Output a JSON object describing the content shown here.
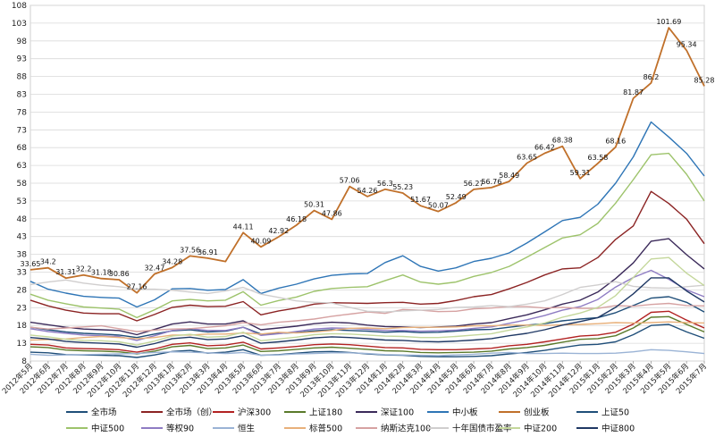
{
  "chart_data": {
    "type": "line",
    "title": "",
    "xlabel": "",
    "ylabel": "",
    "ylim": [
      8,
      108
    ],
    "yticks": [
      8,
      13,
      18,
      23,
      28,
      33,
      38,
      43,
      48,
      53,
      58,
      63,
      68,
      73,
      78,
      83,
      88,
      93,
      98,
      103,
      108
    ],
    "grid": "horizontal",
    "legend_position": "bottom",
    "categories": [
      "2012年5月",
      "2012年6月",
      "2012年7月",
      "2012年8月",
      "2012年9月",
      "2012年10月",
      "2012年11月",
      "2012年12月",
      "2013年1月",
      "2013年2月",
      "2013年3月",
      "2013年4月",
      "2013年5月",
      "2013年6月",
      "2013年7月",
      "2013年8月",
      "2013年9月",
      "2013年10月",
      "2013年11月",
      "2013年12月",
      "2014年1月",
      "2014年2月",
      "2014年3月",
      "2014年4月",
      "2014年5月",
      "2014年6月",
      "2014年7月",
      "2014年8月",
      "2014年9月",
      "2014年10月",
      "2014年11月",
      "2014年12月",
      "2015年1月",
      "2015年2月",
      "2015年3月",
      "2015年4月",
      "2015年5月",
      "2015年6月",
      "2015年7月"
    ],
    "series": [
      {
        "name": "全市场",
        "color": "#1f4e79",
        "values": [
          17.5,
          16.8,
          16.2,
          15.8,
          15.6,
          15.3,
          14.6,
          15.6,
          16.5,
          16.8,
          16.2,
          16.4,
          17.5,
          15.6,
          15.8,
          16.0,
          16.5,
          16.8,
          16.6,
          16.4,
          16.1,
          16.3,
          16.0,
          16.1,
          16.4,
          16.8,
          16.9,
          17.5,
          18.1,
          18.5,
          19.3,
          19.8,
          20.2,
          21.6,
          23.6,
          25.7,
          26.1,
          24.5,
          21.8
        ],
        "labels": []
      },
      {
        "name": "全市场（创）",
        "color": "#8b2323",
        "values": [
          25.1,
          23.5,
          22.3,
          21.5,
          21.3,
          21.3,
          19.3,
          21.1,
          23.1,
          23.7,
          23.3,
          23.4,
          24.7,
          21.0,
          22.1,
          22.9,
          24.0,
          24.4,
          24.3,
          24.2,
          24.4,
          24.5,
          24.0,
          24.2,
          25.0,
          26.1,
          26.7,
          28.3,
          30.1,
          32.2,
          33.9,
          34.2,
          37.1,
          42.2,
          46.0,
          55.7,
          52.3,
          47.9,
          41.0
        ],
        "labels": []
      },
      {
        "name": "沪深300",
        "color": "#b22222",
        "values": [
          12.7,
          12.5,
          11.7,
          11.5,
          11.4,
          11.2,
          10.5,
          11.4,
          12.7,
          13.1,
          12.3,
          12.5,
          13.3,
          11.4,
          11.7,
          12.1,
          12.6,
          12.8,
          12.6,
          12.2,
          11.8,
          11.7,
          11.3,
          11.2,
          11.2,
          11.4,
          11.6,
          12.3,
          12.7,
          13.4,
          14.2,
          15.0,
          15.3,
          16.1,
          18.4,
          21.7,
          22.0,
          19.5,
          17.3
        ],
        "labels": []
      },
      {
        "name": "上证180",
        "color": "#5a7a2a",
        "values": [
          12.0,
          11.8,
          11.1,
          10.9,
          10.8,
          10.6,
          10.0,
          10.8,
          12.0,
          12.4,
          11.5,
          11.7,
          12.5,
          10.7,
          10.9,
          11.3,
          11.7,
          11.9,
          11.6,
          11.3,
          10.9,
          10.8,
          10.4,
          10.3,
          10.4,
          10.5,
          10.8,
          11.4,
          11.8,
          12.4,
          13.3,
          14.1,
          14.3,
          15.1,
          17.3,
          20.3,
          20.5,
          18.3,
          16.2
        ],
        "labels": []
      },
      {
        "name": "深证100",
        "color": "#3b2a5a",
        "values": [
          18.9,
          18.2,
          17.5,
          17.0,
          16.8,
          16.6,
          15.4,
          16.9,
          18.4,
          19.0,
          18.4,
          18.4,
          19.3,
          16.8,
          17.3,
          17.8,
          18.5,
          18.9,
          18.7,
          18.1,
          17.7,
          17.6,
          17.4,
          17.6,
          17.8,
          18.4,
          18.8,
          19.9,
          21.0,
          22.4,
          24.0,
          25.1,
          27.4,
          31.2,
          35.6,
          41.7,
          42.4,
          37.9,
          33.9
        ],
        "labels": []
      },
      {
        "name": "中小板",
        "color": "#2e75b6",
        "values": [
          30.4,
          28.2,
          27.1,
          26.2,
          25.9,
          25.7,
          23.2,
          25.2,
          28.3,
          28.4,
          27.9,
          28.1,
          30.9,
          27.0,
          28.5,
          29.6,
          31.1,
          32.1,
          32.5,
          32.6,
          35.7,
          37.6,
          34.6,
          33.3,
          34.2,
          36.0,
          36.9,
          38.4,
          41.2,
          44.3,
          47.5,
          48.4,
          52.1,
          58.0,
          65.4,
          75.2,
          71.0,
          66.4,
          60.0
        ],
        "labels": []
      },
      {
        "name": "创业板",
        "color": "#c0702a",
        "values": [
          33.65,
          34.2,
          31.31,
          32.2,
          31.18,
          30.86,
          27.16,
          32.47,
          34.28,
          37.56,
          36.91,
          36.0,
          44.11,
          40.09,
          42.92,
          46.18,
          50.31,
          47.86,
          57.06,
          54.26,
          56.3,
          55.23,
          51.67,
          50.07,
          52.49,
          56.27,
          56.76,
          58.49,
          63.65,
          66.42,
          68.38,
          59.31,
          63.58,
          68.16,
          81.87,
          86.2,
          101.69,
          95.34,
          85.28
        ],
        "labels": [
          "33.65",
          "34.2",
          "31.31",
          "32.2",
          "31.18",
          "30.86",
          "27.16",
          "32.47",
          "34.28",
          "37.56",
          "36.91",
          "",
          "44.11",
          "40.09",
          "42.92",
          "46.18",
          "50.31",
          "47.86",
          "57.06",
          "54.26",
          "56.3",
          "55.23",
          "51.67",
          "50.07",
          "52.49",
          "56.27",
          "56.76",
          "58.49",
          "63.65",
          "66.42",
          "68.38",
          "59.31",
          "63.58",
          "68.16",
          "81.87",
          "86.2",
          "101.69",
          "95.34",
          "85.28"
        ]
      },
      {
        "name": "上证50",
        "color": "#1f4e79",
        "values": [
          10.5,
          10.3,
          9.8,
          9.7,
          9.6,
          9.5,
          9.0,
          9.7,
          10.7,
          11.0,
          10.2,
          10.5,
          11.2,
          9.6,
          9.8,
          10.2,
          10.6,
          10.7,
          10.4,
          10.0,
          9.7,
          9.6,
          9.3,
          9.2,
          9.2,
          9.3,
          9.5,
          10.0,
          10.4,
          11.0,
          11.8,
          12.5,
          12.7,
          13.4,
          15.4,
          18.0,
          18.3,
          16.2,
          14.4
        ],
        "labels": []
      },
      {
        "name": "中证500",
        "color": "#9dc36b",
        "values": [
          26.8,
          25.1,
          24.1,
          23.2,
          22.9,
          22.6,
          20.2,
          22.4,
          24.9,
          25.3,
          24.9,
          25.1,
          27.5,
          23.7,
          25.0,
          26.0,
          27.6,
          28.4,
          28.7,
          28.9,
          30.6,
          32.2,
          30.2,
          29.6,
          30.2,
          31.8,
          32.9,
          34.6,
          37.2,
          39.9,
          42.6,
          43.5,
          46.7,
          52.4,
          59.0,
          66.0,
          66.4,
          60.5,
          53.0
        ],
        "labels": []
      },
      {
        "name": "等权90",
        "color": "#8e7cc3",
        "values": [
          17.1,
          16.3,
          15.8,
          15.3,
          15.1,
          14.9,
          13.8,
          15.1,
          16.6,
          17.1,
          16.6,
          16.6,
          17.5,
          15.2,
          15.7,
          16.3,
          17.0,
          17.3,
          17.2,
          16.9,
          16.6,
          16.6,
          16.4,
          16.5,
          16.7,
          17.2,
          17.6,
          18.6,
          19.6,
          20.8,
          22.3,
          23.3,
          25.3,
          28.8,
          31.5,
          33.5,
          31.0,
          28.0,
          26.1
        ],
        "labels": []
      },
      {
        "name": "恒生",
        "color": "#9ab3d5",
        "values": [
          9.9,
          9.6,
          9.7,
          9.8,
          9.9,
          10.0,
          10.1,
          10.4,
          10.6,
          10.5,
          10.3,
          10.1,
          10.4,
          9.6,
          9.7,
          10.0,
          10.1,
          10.3,
          10.3,
          10.1,
          9.8,
          9.7,
          9.6,
          9.5,
          9.7,
          9.9,
          10.2,
          10.4,
          10.1,
          10.1,
          10.2,
          10.1,
          10.1,
          10.2,
          10.6,
          11.2,
          11.0,
          10.6,
          10.1
        ],
        "labels": []
      },
      {
        "name": "标普500",
        "color": "#e8b07a",
        "values": [
          13.9,
          14.0,
          14.2,
          14.6,
          14.9,
          14.6,
          14.3,
          14.6,
          15.3,
          15.3,
          15.6,
          15.6,
          15.9,
          15.6,
          16.1,
          15.9,
          16.2,
          16.6,
          17.2,
          17.3,
          17.1,
          17.4,
          17.5,
          17.5,
          17.6,
          17.9,
          17.9,
          18.1,
          18.1,
          18.0,
          18.2,
          18.3,
          18.5,
          18.8,
          18.7,
          18.8,
          19.0,
          18.8,
          18.7
        ],
        "labels": []
      },
      {
        "name": "纳斯达克100",
        "color": "#d6a2a2",
        "values": [
          17.5,
          17.0,
          17.3,
          17.6,
          17.9,
          17.1,
          16.3,
          16.7,
          17.0,
          17.1,
          17.5,
          17.9,
          18.8,
          18.2,
          18.9,
          19.3,
          19.8,
          20.6,
          21.2,
          21.8,
          21.4,
          22.5,
          22.3,
          21.9,
          22.0,
          22.7,
          22.9,
          23.3,
          23.3,
          22.9,
          23.1,
          22.8,
          22.8,
          23.6,
          23.4,
          23.9,
          24.2,
          23.6,
          23.5
        ],
        "labels": []
      },
      {
        "name": "十年国债市盈率",
        "color": "#d0cece",
        "values": [
          29.5,
          30.2,
          30.8,
          29.9,
          29.3,
          28.9,
          28.2,
          28.2,
          27.9,
          27.4,
          27.0,
          27.7,
          28.7,
          26.8,
          25.9,
          24.9,
          24.5,
          24.3,
          23.1,
          22.0,
          21.8,
          22.1,
          22.3,
          22.5,
          23.1,
          23.2,
          23.6,
          23.3,
          24.0,
          24.9,
          26.7,
          28.7,
          29.4,
          30.3,
          29.0,
          28.6,
          28.5,
          28.9,
          29.3
        ],
        "labels": []
      },
      {
        "name": "中证200",
        "color": "#c4d79b",
        "values": [
          15.3,
          14.8,
          14.1,
          13.8,
          13.7,
          13.4,
          12.5,
          13.6,
          15.0,
          15.5,
          14.7,
          14.9,
          16.1,
          13.7,
          14.2,
          14.7,
          15.4,
          15.7,
          15.6,
          15.3,
          15.0,
          14.9,
          14.6,
          14.6,
          14.9,
          15.3,
          15.7,
          16.7,
          17.6,
          18.7,
          20.3,
          21.5,
          23.1,
          26.4,
          31.5,
          36.7,
          37.1,
          32.7,
          29.2
        ],
        "labels": []
      },
      {
        "name": "中证800",
        "color": "#1f3864",
        "values": [
          14.6,
          14.2,
          13.5,
          13.2,
          13.0,
          12.8,
          11.9,
          12.9,
          14.3,
          14.7,
          14.0,
          14.2,
          15.1,
          13.0,
          13.4,
          13.9,
          14.5,
          14.8,
          14.6,
          14.3,
          13.9,
          13.8,
          13.5,
          13.4,
          13.6,
          13.9,
          14.3,
          15.1,
          15.8,
          16.8,
          18.1,
          19.1,
          20.2,
          23.1,
          26.9,
          31.4,
          31.4,
          27.7,
          24.6
        ],
        "labels": []
      }
    ]
  }
}
